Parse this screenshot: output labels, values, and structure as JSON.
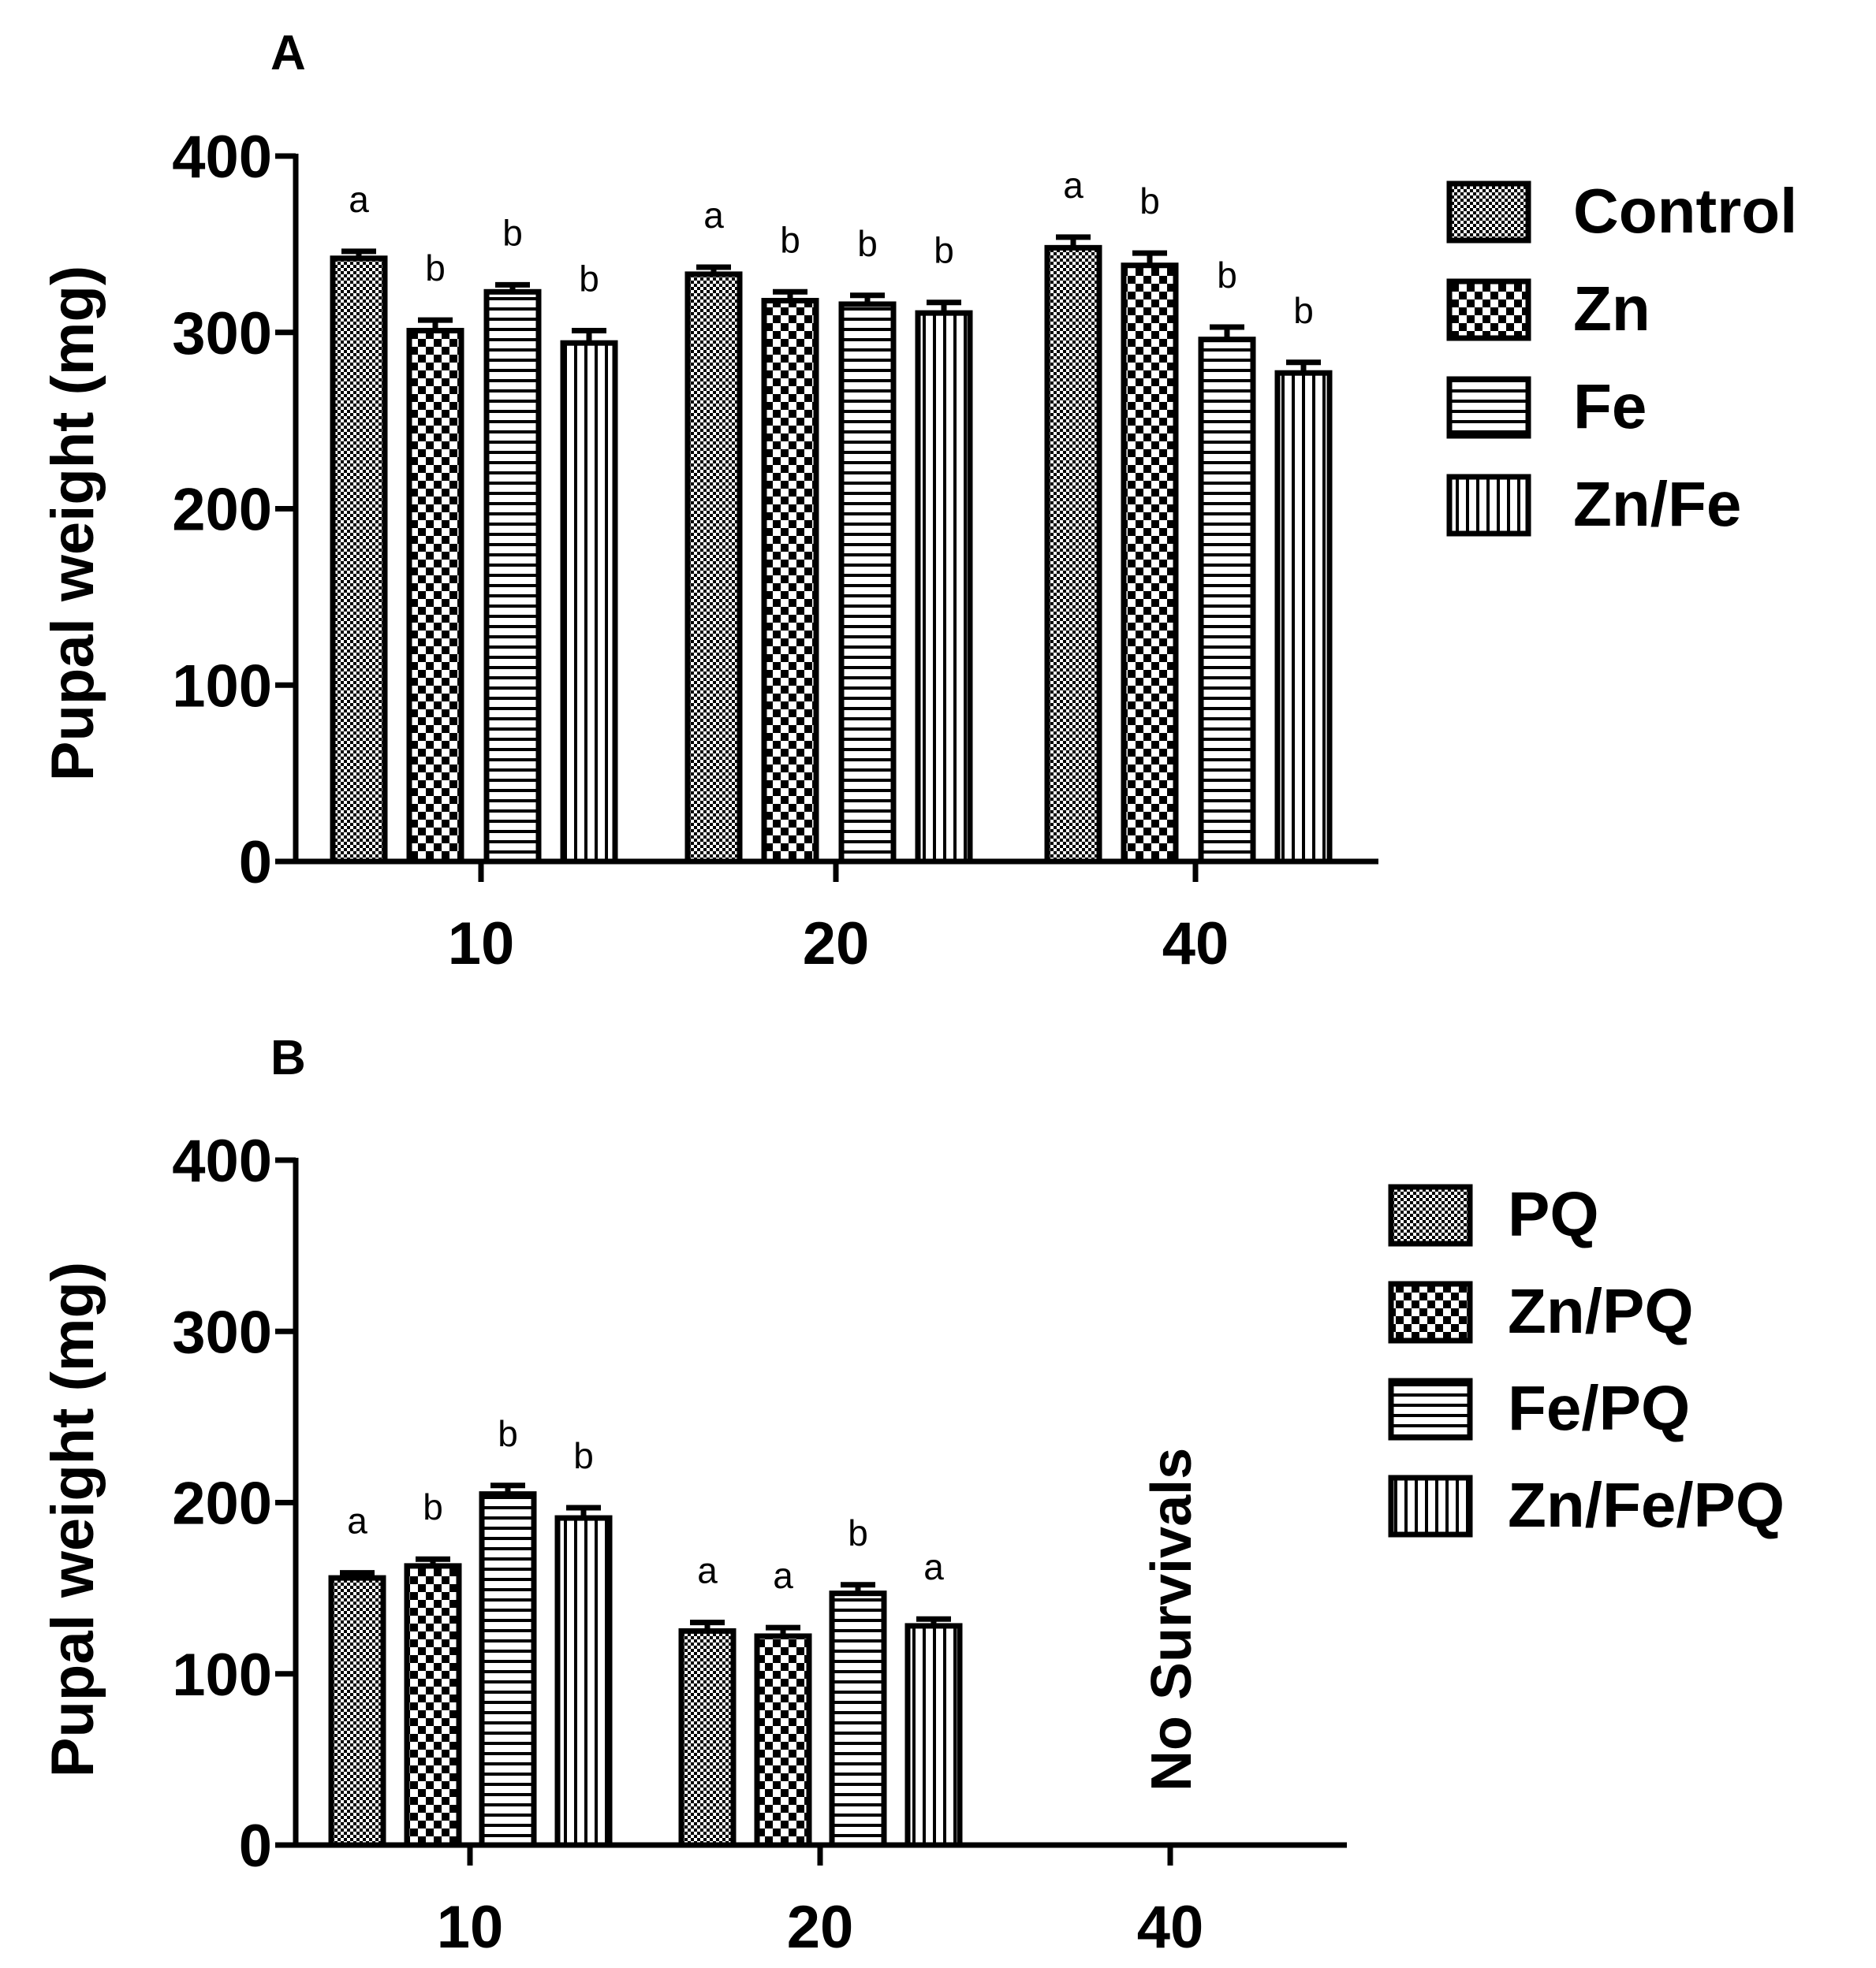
{
  "chart_data": [
    {
      "type": "bar",
      "panel_label": "A",
      "ylabel": "Pupal weight (mg)",
      "xlabel": "",
      "ylim": [
        0,
        400
      ],
      "yticks": [
        0,
        100,
        200,
        300,
        400
      ],
      "ytick_labels": [
        "0",
        "100",
        "200",
        "300",
        "400"
      ],
      "categories": [
        "10",
        "20",
        "40"
      ],
      "legend_position": "top-right",
      "series": [
        {
          "name": "Control",
          "pattern": "fine-checker",
          "values": [
            342,
            333,
            348
          ],
          "errors": [
            4,
            4,
            6
          ],
          "letters": [
            "a",
            "a",
            "a"
          ]
        },
        {
          "name": "Zn",
          "pattern": "coarse-checker",
          "values": [
            301,
            318,
            338
          ],
          "errors": [
            6,
            5,
            7
          ],
          "letters": [
            "b",
            "b",
            "b"
          ]
        },
        {
          "name": "Fe",
          "pattern": "horizontal-stripes",
          "values": [
            323,
            316,
            296
          ],
          "errors": [
            4,
            5,
            7
          ],
          "letters": [
            "b",
            "b",
            "b"
          ]
        },
        {
          "name": "Zn/Fe",
          "pattern": "vertical-stripes",
          "values": [
            294,
            311,
            277
          ],
          "errors": [
            7,
            6,
            6
          ],
          "letters": [
            "b",
            "b",
            "b"
          ]
        }
      ],
      "annotations": []
    },
    {
      "type": "bar",
      "panel_label": "B",
      "ylabel": "Pupal weight (mg)",
      "xlabel": "",
      "ylim": [
        0,
        400
      ],
      "yticks": [
        0,
        100,
        200,
        300,
        400
      ],
      "ytick_labels": [
        "0",
        "100",
        "200",
        "300",
        "400"
      ],
      "categories": [
        "10",
        "20",
        "40"
      ],
      "legend_position": "top-right",
      "series": [
        {
          "name": "PQ",
          "pattern": "fine-checker",
          "values": [
            156,
            125,
            null
          ],
          "errors": [
            3,
            5,
            null
          ],
          "letters": [
            "a",
            "a",
            ""
          ]
        },
        {
          "name": "Zn/PQ",
          "pattern": "coarse-checker",
          "values": [
            163,
            122,
            null
          ],
          "errors": [
            4,
            5,
            null
          ],
          "letters": [
            "b",
            "a",
            ""
          ]
        },
        {
          "name": "Fe/PQ",
          "pattern": "horizontal-stripes",
          "values": [
            205,
            147,
            null
          ],
          "errors": [
            5,
            5,
            null
          ],
          "letters": [
            "b",
            "b",
            ""
          ]
        },
        {
          "name": "Zn/Fe/PQ",
          "pattern": "vertical-stripes",
          "values": [
            191,
            128,
            null
          ],
          "errors": [
            6,
            4,
            null
          ],
          "letters": [
            "b",
            "a",
            ""
          ]
        }
      ],
      "annotations": [
        {
          "text": "No Survivals",
          "category": "40",
          "orientation": "vertical"
        }
      ]
    }
  ]
}
